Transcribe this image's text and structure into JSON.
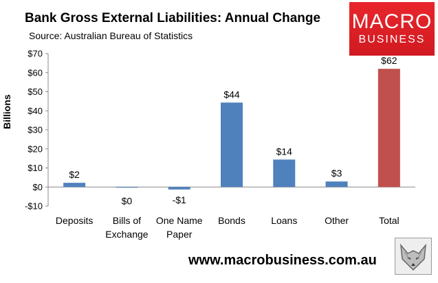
{
  "header": {
    "title": "Bank Gross External Liabilities: Annual Change",
    "subtitle": "Source: Australian Bureau of Statistics"
  },
  "logo": {
    "line1": "MACRO",
    "line2": "BUSINESS"
  },
  "footer": {
    "url": "www.macrobusiness.com.au"
  },
  "fox_icon": "fox-icon",
  "chart_data": {
    "type": "bar",
    "ylabel": "Billions",
    "xlabel": "",
    "ylim": [
      -10,
      70
    ],
    "yticks": [
      -10,
      0,
      10,
      20,
      30,
      40,
      50,
      60,
      70
    ],
    "ytick_labels": [
      "-$10",
      "$0",
      "$10",
      "$20",
      "$30",
      "$40",
      "$50",
      "$60",
      "$70"
    ],
    "categories": [
      [
        "Deposits"
      ],
      [
        "Bills of",
        "Exchange"
      ],
      [
        "One Name",
        "Paper"
      ],
      [
        "Bonds"
      ],
      [
        "Loans"
      ],
      [
        "Other"
      ],
      [
        "Total"
      ]
    ],
    "values": [
      2.2,
      -0.3,
      -1.3,
      44.3,
      14.4,
      2.9,
      62.0
    ],
    "data_labels": [
      "$2",
      "$0",
      "-$1",
      "$44",
      "$14",
      "$3",
      "$62"
    ],
    "colors": [
      "#4f81bd",
      "#4f81bd",
      "#4f81bd",
      "#4f81bd",
      "#4f81bd",
      "#4f81bd",
      "#c0504d"
    ],
    "grid": false,
    "legend": "none"
  }
}
